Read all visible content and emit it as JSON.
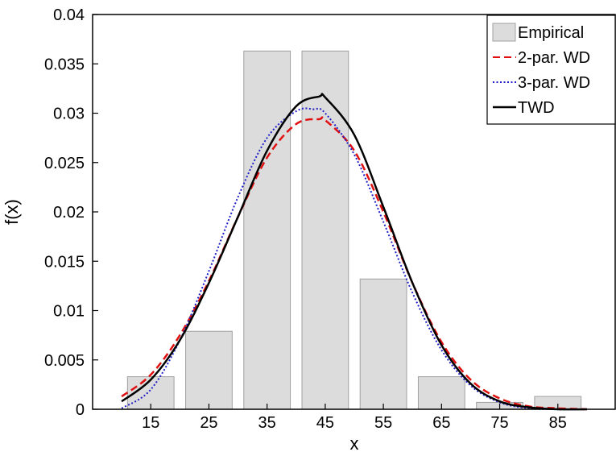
{
  "chart_data": {
    "type": "bar",
    "title": "",
    "xlabel": "x",
    "ylabel": "f(x)",
    "xlim": [
      5,
      95
    ],
    "ylim": [
      0,
      0.04
    ],
    "x_ticks": [
      15,
      25,
      35,
      45,
      55,
      65,
      75,
      85
    ],
    "y_ticks": [
      0,
      0.005,
      0.01,
      0.015,
      0.02,
      0.025,
      0.03,
      0.035,
      0.04
    ],
    "y_tick_labels": [
      "0",
      "0.005",
      "0.01",
      "0.015",
      "0.02",
      "0.025",
      "0.03",
      "0.035",
      "0.04"
    ],
    "grid": false,
    "legend_position": "top-right",
    "histogram": {
      "name": "Empirical",
      "bin_width": 10,
      "bar_width_fraction": 0.8,
      "centers": [
        15,
        25,
        35,
        45,
        55,
        65,
        75,
        85
      ],
      "values": [
        0.0033,
        0.0079,
        0.0363,
        0.0363,
        0.0132,
        0.0033,
        0.0007,
        0.0013
      ],
      "color": "#dcdcdc"
    },
    "series": [
      {
        "name": "2-par. WD",
        "style": "dashed",
        "color": "#e01010",
        "x": [
          10,
          15,
          20,
          25,
          30,
          35,
          40,
          44,
          45,
          50,
          55,
          60,
          65,
          70,
          75,
          80,
          85,
          90
        ],
        "y": [
          0.0013,
          0.0035,
          0.0075,
          0.013,
          0.0195,
          0.0255,
          0.0289,
          0.0294,
          0.0293,
          0.0262,
          0.02,
          0.0128,
          0.0068,
          0.003,
          0.0011,
          0.0003,
          0.0001,
          0.0
        ]
      },
      {
        "name": "3-par. WD",
        "style": "dotted",
        "color": "#2020c8",
        "x": [
          10,
          15,
          20,
          25,
          30,
          35,
          40,
          43,
          45,
          50,
          55,
          60,
          65,
          70,
          75,
          80,
          85,
          90
        ],
        "y": [
          0.0001,
          0.002,
          0.007,
          0.014,
          0.0215,
          0.0275,
          0.0302,
          0.0304,
          0.03,
          0.0258,
          0.019,
          0.0118,
          0.006,
          0.0024,
          0.0007,
          0.0001,
          0.0,
          0.0
        ]
      },
      {
        "name": "TWD",
        "style": "solid",
        "color": "#000000",
        "x": [
          10,
          15,
          20,
          25,
          30,
          35,
          40,
          44,
          45,
          50,
          55,
          60,
          65,
          70,
          75,
          80,
          85,
          90
        ],
        "y": [
          0.0008,
          0.003,
          0.007,
          0.0128,
          0.0195,
          0.0262,
          0.0307,
          0.0317,
          0.0316,
          0.0278,
          0.0205,
          0.0128,
          0.0065,
          0.0026,
          0.0008,
          0.0002,
          0.0,
          0.0
        ]
      }
    ]
  }
}
